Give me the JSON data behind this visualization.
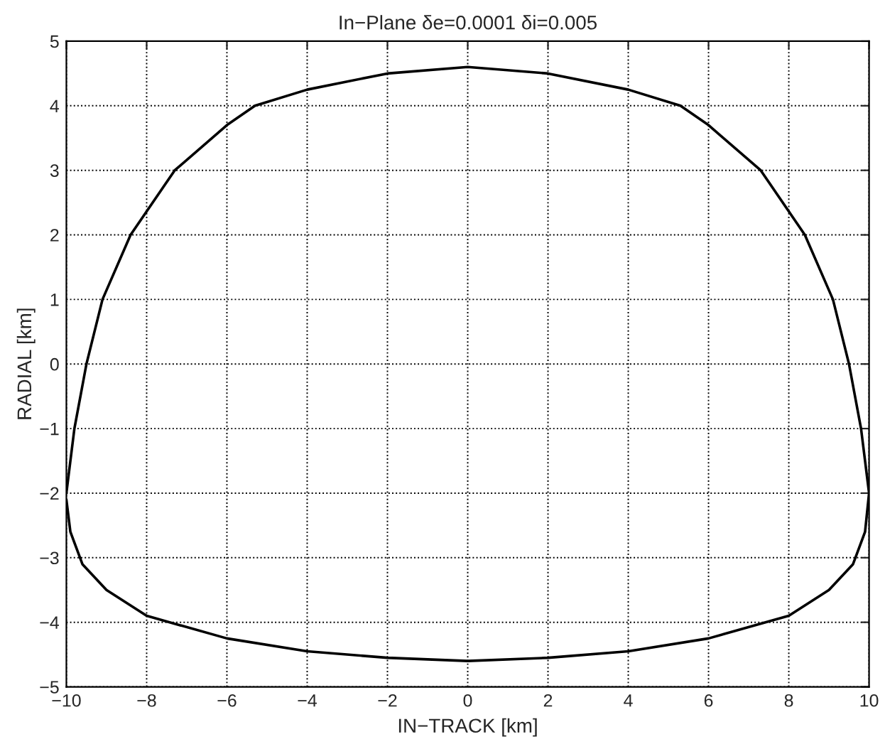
{
  "chart_data": {
    "type": "line",
    "title": "In−Plane δe=0.0001 δi=0.005",
    "xlabel": "IN−TRACK [km]",
    "ylabel": "RADIAL [km]",
    "series": [
      {
        "color": "#000000",
        "x": [
          -10,
          -9.8,
          -9.5,
          -9.1,
          -8.4,
          -7.3,
          -6,
          -5.3,
          -4,
          -2,
          0,
          2,
          4,
          5.3,
          6,
          7.3,
          8.4,
          9.1,
          9.5,
          9.8,
          10,
          9.9,
          9.6,
          9,
          8,
          6,
          4,
          2,
          0,
          -2,
          -4,
          -6,
          -8,
          -9,
          -9.6,
          -9.9,
          -10
        ],
        "values": [
          -2,
          -1,
          0,
          1,
          2,
          3,
          3.7,
          4.0,
          4.25,
          4.5,
          4.6,
          4.5,
          4.25,
          4.0,
          3.7,
          3,
          2,
          1,
          0,
          -1,
          -2,
          -2.6,
          -3.1,
          -3.5,
          -3.9,
          -4.25,
          -4.45,
          -4.55,
          -4.6,
          -4.55,
          -4.45,
          -4.25,
          -3.9,
          -3.5,
          -3.1,
          -2.6,
          -2.1
        ]
      }
    ],
    "xlim": [
      -10,
      10
    ],
    "xticks": [
      {
        "value": -10,
        "label": "−10"
      },
      {
        "value": -8,
        "label": "−8"
      },
      {
        "value": -6,
        "label": "−6"
      },
      {
        "value": -4,
        "label": "−4"
      },
      {
        "value": -2,
        "label": "−2"
      },
      0,
      2,
      4,
      6,
      8,
      10
    ],
    "ylim": [
      -5,
      5
    ],
    "yticks": [
      {
        "value": -5,
        "label": "−5"
      },
      {
        "value": -4,
        "label": "−4"
      },
      {
        "value": -3,
        "label": "−3"
      },
      {
        "value": -2,
        "label": "−2"
      },
      {
        "value": -1,
        "label": "−1"
      },
      0,
      1,
      2,
      3,
      4,
      5
    ],
    "grid": true,
    "legend": false,
    "marker": "none",
    "line_style": "solid"
  }
}
